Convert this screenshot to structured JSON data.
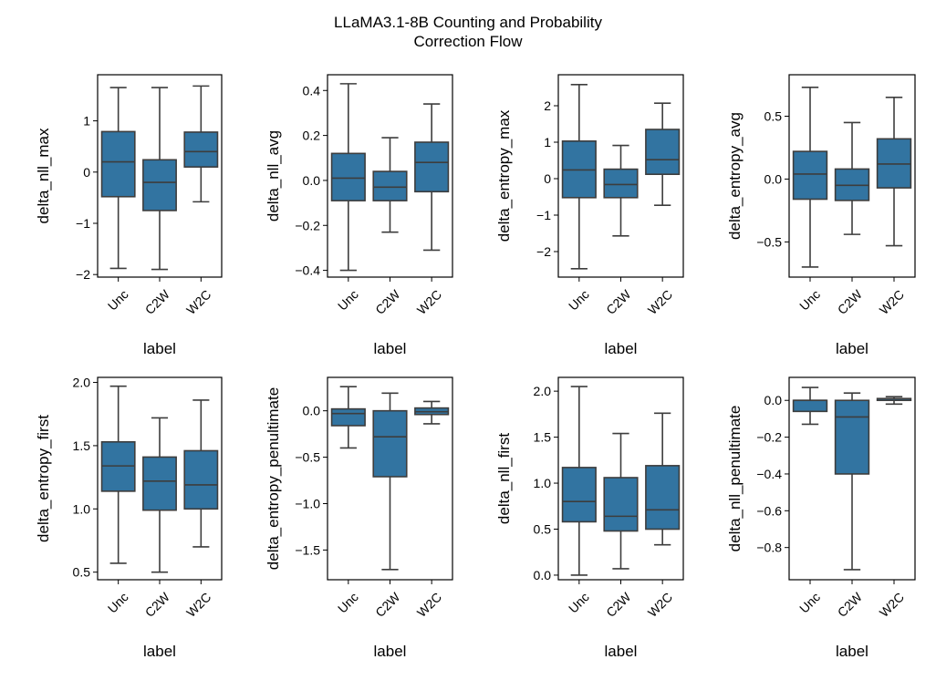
{
  "figure": {
    "title_line1": "LLaMA3.1-8B Counting and Probability",
    "title_line2": "Correction Flow",
    "box_color": "#3274a1",
    "line_color": "#3d3d3d"
  },
  "chart_data": [
    {
      "type": "box",
      "ylabel": "delta_nll_max",
      "xlabel": "label",
      "categories": [
        "Unc",
        "C2W",
        "W2C"
      ],
      "ylim": [
        -2.05,
        1.9
      ],
      "yticks": [
        -2,
        -1,
        0,
        1
      ],
      "ytick_labels": [
        "−2",
        "−1",
        "0",
        "1"
      ],
      "boxes": [
        {
          "whisker_low": -1.88,
          "q1": -0.48,
          "median": 0.2,
          "q3": 0.79,
          "whisker_high": 1.65
        },
        {
          "whisker_low": -1.9,
          "q1": -0.75,
          "median": -0.2,
          "q3": 0.24,
          "whisker_high": 1.65
        },
        {
          "whisker_low": -0.58,
          "q1": 0.1,
          "median": 0.4,
          "q3": 0.78,
          "whisker_high": 1.68
        }
      ]
    },
    {
      "type": "box",
      "ylabel": "delta_nll_avg",
      "xlabel": "label",
      "categories": [
        "Unc",
        "C2W",
        "W2C"
      ],
      "ylim": [
        -0.43,
        0.47
      ],
      "yticks": [
        -0.4,
        -0.2,
        0.0,
        0.2,
        0.4
      ],
      "ytick_labels": [
        "−0.4",
        "−0.2",
        "0.0",
        "0.2",
        "0.4"
      ],
      "boxes": [
        {
          "whisker_low": -0.4,
          "q1": -0.09,
          "median": 0.01,
          "q3": 0.12,
          "whisker_high": 0.43
        },
        {
          "whisker_low": -0.23,
          "q1": -0.09,
          "median": -0.03,
          "q3": 0.04,
          "whisker_high": 0.19
        },
        {
          "whisker_low": -0.31,
          "q1": -0.05,
          "median": 0.08,
          "q3": 0.17,
          "whisker_high": 0.34
        }
      ]
    },
    {
      "type": "box",
      "ylabel": "delta_entropy_max",
      "xlabel": "label",
      "categories": [
        "Unc",
        "C2W",
        "W2C"
      ],
      "ylim": [
        -2.7,
        2.85
      ],
      "yticks": [
        -2,
        -1,
        0,
        1,
        2
      ],
      "ytick_labels": [
        "−2",
        "−1",
        "0",
        "1",
        "2"
      ],
      "boxes": [
        {
          "whisker_low": -2.47,
          "q1": -0.52,
          "median": 0.24,
          "q3": 1.03,
          "whisker_high": 2.58
        },
        {
          "whisker_low": -1.57,
          "q1": -0.52,
          "median": -0.16,
          "q3": 0.26,
          "whisker_high": 0.91
        },
        {
          "whisker_low": -0.73,
          "q1": 0.12,
          "median": 0.52,
          "q3": 1.35,
          "whisker_high": 2.07
        }
      ]
    },
    {
      "type": "box",
      "ylabel": "delta_entropy_avg",
      "xlabel": "label",
      "categories": [
        "Unc",
        "C2W",
        "W2C"
      ],
      "ylim": [
        -0.78,
        0.83
      ],
      "yticks": [
        -0.5,
        0.0,
        0.5
      ],
      "ytick_labels": [
        "−0.5",
        "0.0",
        "0.5"
      ],
      "boxes": [
        {
          "whisker_low": -0.7,
          "q1": -0.16,
          "median": 0.04,
          "q3": 0.22,
          "whisker_high": 0.73
        },
        {
          "whisker_low": -0.44,
          "q1": -0.17,
          "median": -0.05,
          "q3": 0.08,
          "whisker_high": 0.45
        },
        {
          "whisker_low": -0.53,
          "q1": -0.07,
          "median": 0.12,
          "q3": 0.32,
          "whisker_high": 0.65
        }
      ]
    },
    {
      "type": "box",
      "ylabel": "delta_entropy_first",
      "xlabel": "label",
      "categories": [
        "Unc",
        "C2W",
        "W2C"
      ],
      "ylim": [
        0.44,
        2.04
      ],
      "yticks": [
        0.5,
        1.0,
        1.5,
        2.0
      ],
      "ytick_labels": [
        "0.5",
        "1.0",
        "1.5",
        "2.0"
      ],
      "boxes": [
        {
          "whisker_low": 0.57,
          "q1": 1.14,
          "median": 1.34,
          "q3": 1.53,
          "whisker_high": 1.97
        },
        {
          "whisker_low": 0.5,
          "q1": 0.99,
          "median": 1.22,
          "q3": 1.41,
          "whisker_high": 1.72
        },
        {
          "whisker_low": 0.7,
          "q1": 1.0,
          "median": 1.19,
          "q3": 1.46,
          "whisker_high": 1.86
        }
      ]
    },
    {
      "type": "box",
      "ylabel": "delta_entropy_penultimate",
      "xlabel": "label",
      "categories": [
        "Unc",
        "C2W",
        "W2C"
      ],
      "ylim": [
        -1.82,
        0.36
      ],
      "yticks": [
        -1.5,
        -1.0,
        -0.5,
        0.0
      ],
      "ytick_labels": [
        "−1.5",
        "−1.0",
        "−0.5",
        "0.0"
      ],
      "boxes": [
        {
          "whisker_low": -0.4,
          "q1": -0.16,
          "median": -0.03,
          "q3": 0.02,
          "whisker_high": 0.26
        },
        {
          "whisker_low": -1.71,
          "q1": -0.71,
          "median": -0.28,
          "q3": 0.0,
          "whisker_high": 0.19
        },
        {
          "whisker_low": -0.14,
          "q1": -0.04,
          "median": -0.01,
          "q3": 0.03,
          "whisker_high": 0.1
        }
      ]
    },
    {
      "type": "box",
      "ylabel": "delta_nll_first",
      "xlabel": "label",
      "categories": [
        "Unc",
        "C2W",
        "W2C"
      ],
      "ylim": [
        -0.05,
        2.15
      ],
      "yticks": [
        0.0,
        0.5,
        1.0,
        1.5,
        2.0
      ],
      "ytick_labels": [
        "0.0",
        "0.5",
        "1.0",
        "1.5",
        "2.0"
      ],
      "boxes": [
        {
          "whisker_low": 0.0,
          "q1": 0.58,
          "median": 0.8,
          "q3": 1.17,
          "whisker_high": 2.05
        },
        {
          "whisker_low": 0.07,
          "q1": 0.48,
          "median": 0.64,
          "q3": 1.06,
          "whisker_high": 1.54
        },
        {
          "whisker_low": 0.33,
          "q1": 0.5,
          "median": 0.71,
          "q3": 1.19,
          "whisker_high": 1.76
        }
      ]
    },
    {
      "type": "box",
      "ylabel": "delta_nll_penultimate",
      "xlabel": "label",
      "categories": [
        "Unc",
        "C2W",
        "W2C"
      ],
      "ylim": [
        -0.975,
        0.125
      ],
      "yticks": [
        -0.8,
        -0.6,
        -0.4,
        -0.2,
        0.0
      ],
      "ytick_labels": [
        "−0.8",
        "−0.6",
        "−0.4",
        "−0.2",
        "0.0"
      ],
      "boxes": [
        {
          "whisker_low": -0.13,
          "q1": -0.06,
          "median": 0.0,
          "q3": 0.0,
          "whisker_high": 0.07
        },
        {
          "whisker_low": -0.92,
          "q1": -0.4,
          "median": -0.09,
          "q3": 0.0,
          "whisker_high": 0.04
        },
        {
          "whisker_low": -0.02,
          "q1": 0.0,
          "median": 0.0,
          "q3": 0.01,
          "whisker_high": 0.02
        }
      ]
    }
  ]
}
